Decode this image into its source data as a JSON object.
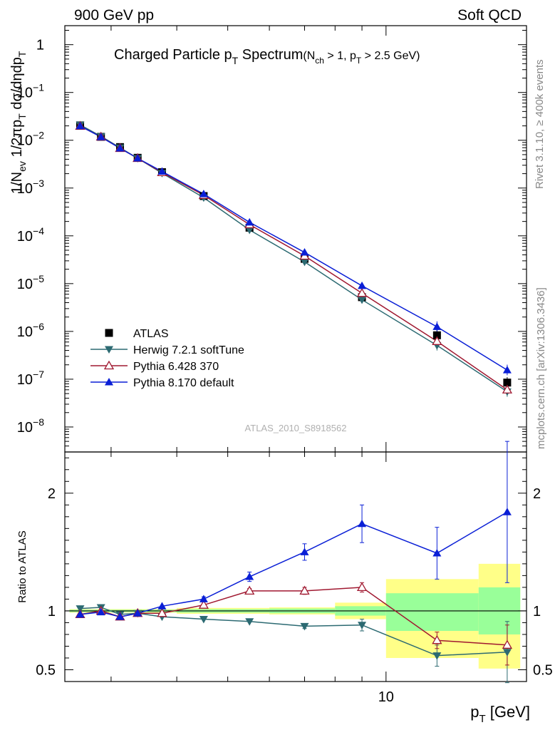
{
  "header": {
    "left": "900 GeV pp",
    "right": "Soft QCD"
  },
  "side_labels": {
    "rivet": "Rivet 3.1.10, ≥ 400k events",
    "mcplots": "mcplots.cern.ch [arXiv:1306.3436]"
  },
  "chart_data": [
    {
      "panel": "main",
      "type": "scatter",
      "title": "Charged Particle pT Spectrum",
      "title_parts": {
        "main": "Charged Particle p",
        "sub": "T",
        "after": " Spectrum",
        "cut_open": "(N",
        "cut_sub1": "ch",
        "cut_mid": " > 1, p",
        "cut_sub2": "T",
        "cut_close": " > 2.5 GeV)"
      },
      "ylabel": "1/Nev 1/2πpT dσ/dηdpT",
      "ylabel_parts": {
        "a": "1/N",
        "a_sub": "ev",
        "b": " 1/2πp",
        "b_sub": "T",
        "c": " dσ/dηdp",
        "c_sub": "T"
      },
      "yscale": "log",
      "ylim": [
        3e-09,
        2.5
      ],
      "xscale": "log",
      "xlim": [
        2.45,
        18.5
      ],
      "yticks": [
        {
          "label": "1",
          "exp": "",
          "value": 1
        },
        {
          "label": "10",
          "exp": "−1",
          "value": 0.1
        },
        {
          "label": "10",
          "exp": "−2",
          "value": 0.01
        },
        {
          "label": "10",
          "exp": "−3",
          "value": 0.001
        },
        {
          "label": "10",
          "exp": "−4",
          "value": 0.0001
        },
        {
          "label": "10",
          "exp": "−5",
          "value": 1e-05
        },
        {
          "label": "10",
          "exp": "−6",
          "value": 1e-06
        },
        {
          "label": "10",
          "exp": "−7",
          "value": 1e-07
        },
        {
          "label": "10",
          "exp": "−8",
          "value": 1e-08
        }
      ],
      "watermark": "ATLAS_2010_S8918562",
      "legend_position": "bottom-left",
      "x": [
        2.62,
        2.87,
        3.12,
        3.37,
        3.75,
        4.5,
        5.5,
        7.0,
        9.0,
        12.5,
        17.0
      ],
      "series": [
        {
          "name": "ATLAS",
          "marker": "square",
          "color": "#000000",
          "values": [
            0.0205,
            0.0118,
            0.0072,
            0.0043,
            0.00215,
            0.00068,
            0.000148,
            3.3e-05,
            5.2e-06,
            8.3e-07,
            8.5e-08
          ]
        },
        {
          "name": "Herwig 7.2.1 softTune",
          "marker": "triangle-down",
          "color": "#2c6a72",
          "values": [
            0.021,
            0.0121,
            0.007,
            0.0042,
            0.00205,
            0.00063,
            0.000133,
            2.85e-05,
            4.6e-06,
            5.1e-07,
            5.5e-08
          ]
        },
        {
          "name": "Pythia 6.428 370",
          "marker": "triangle-open",
          "color": "#a01830",
          "values": [
            0.0198,
            0.0118,
            0.0068,
            0.0042,
            0.00212,
            0.00071,
            0.000172,
            3.8e-05,
            6.3e-06,
            6.2e-07,
            6e-08
          ]
        },
        {
          "name": "Pythia 8.170 default",
          "marker": "triangle-up",
          "color": "#0a1fd6",
          "values": [
            0.0199,
            0.0117,
            0.0068,
            0.0042,
            0.00222,
            0.00075,
            0.000192,
            4.5e-05,
            9e-06,
            1.25e-06,
            1.55e-07
          ]
        }
      ]
    },
    {
      "panel": "ratio",
      "type": "line",
      "ylabel": "Ratio to ATLAS",
      "xlabel": "pT [GeV]",
      "xlabel_parts": {
        "a": "p",
        "sub": "T",
        "b": "  [GeV]"
      },
      "xscale": "log",
      "xlim": [
        2.45,
        18.5
      ],
      "ylim": [
        0.4,
        2.35
      ],
      "yticks": [
        {
          "label": "0.5",
          "value": 0.5
        },
        {
          "label": "1",
          "value": 1
        },
        {
          "label": "2",
          "value": 2
        }
      ],
      "xtick_labels": [
        {
          "label": "10",
          "value": 10
        }
      ],
      "uncertainty_bands": [
        {
          "x_low": 2.5,
          "x_high": 4.0,
          "stat_low": 0.99,
          "stat_high": 1.01,
          "total_low": 0.985,
          "total_high": 1.015
        },
        {
          "x_low": 4.0,
          "x_high": 6.0,
          "stat_low": 0.985,
          "stat_high": 1.015,
          "total_low": 0.975,
          "total_high": 1.025
        },
        {
          "x_low": 6.0,
          "x_high": 8.0,
          "stat_low": 0.98,
          "stat_high": 1.02,
          "total_low": 0.97,
          "total_high": 1.03
        },
        {
          "x_low": 8.0,
          "x_high": 10.0,
          "stat_low": 0.96,
          "stat_high": 1.04,
          "total_low": 0.93,
          "total_high": 1.07
        },
        {
          "x_low": 10.0,
          "x_high": 15.0,
          "stat_low": 0.83,
          "stat_high": 1.15,
          "total_low": 0.6,
          "total_high": 1.27
        },
        {
          "x_low": 15.0,
          "x_high": 18.0,
          "stat_low": 0.8,
          "stat_high": 1.2,
          "total_low": 0.51,
          "total_high": 1.4
        }
      ],
      "x": [
        2.62,
        2.87,
        3.12,
        3.37,
        3.75,
        4.5,
        5.5,
        7.0,
        9.0,
        12.5,
        17.0
      ],
      "series": [
        {
          "name": "Herwig 7.2.1 softTune",
          "marker": "triangle-down",
          "color": "#2c6a72",
          "values": [
            1.02,
            1.03,
            0.97,
            0.98,
            0.95,
            0.93,
            0.91,
            0.87,
            0.88,
            0.62,
            0.65
          ],
          "err": [
            0.01,
            0.01,
            0.01,
            0.01,
            0.01,
            0.01,
            0.01,
            0.02,
            0.05,
            0.09,
            0.26
          ]
        },
        {
          "name": "Pythia 6.428 370",
          "marker": "triangle-open",
          "color": "#a01830",
          "values": [
            0.97,
            1.0,
            0.95,
            0.98,
            0.98,
            1.05,
            1.17,
            1.17,
            1.2,
            0.75,
            0.71
          ],
          "err": [
            0.01,
            0.01,
            0.01,
            0.01,
            0.01,
            0.01,
            0.02,
            0.03,
            0.04,
            0.07,
            0.17
          ]
        },
        {
          "name": "Pythia 8.170 default",
          "marker": "triangle-up",
          "color": "#0a1fd6",
          "values": [
            0.97,
            0.99,
            0.95,
            0.98,
            1.04,
            1.1,
            1.29,
            1.5,
            1.74,
            1.49,
            1.84
          ],
          "err": [
            0.01,
            0.01,
            0.01,
            0.01,
            0.01,
            0.02,
            0.04,
            0.07,
            0.16,
            0.22,
            0.6
          ]
        }
      ]
    }
  ]
}
